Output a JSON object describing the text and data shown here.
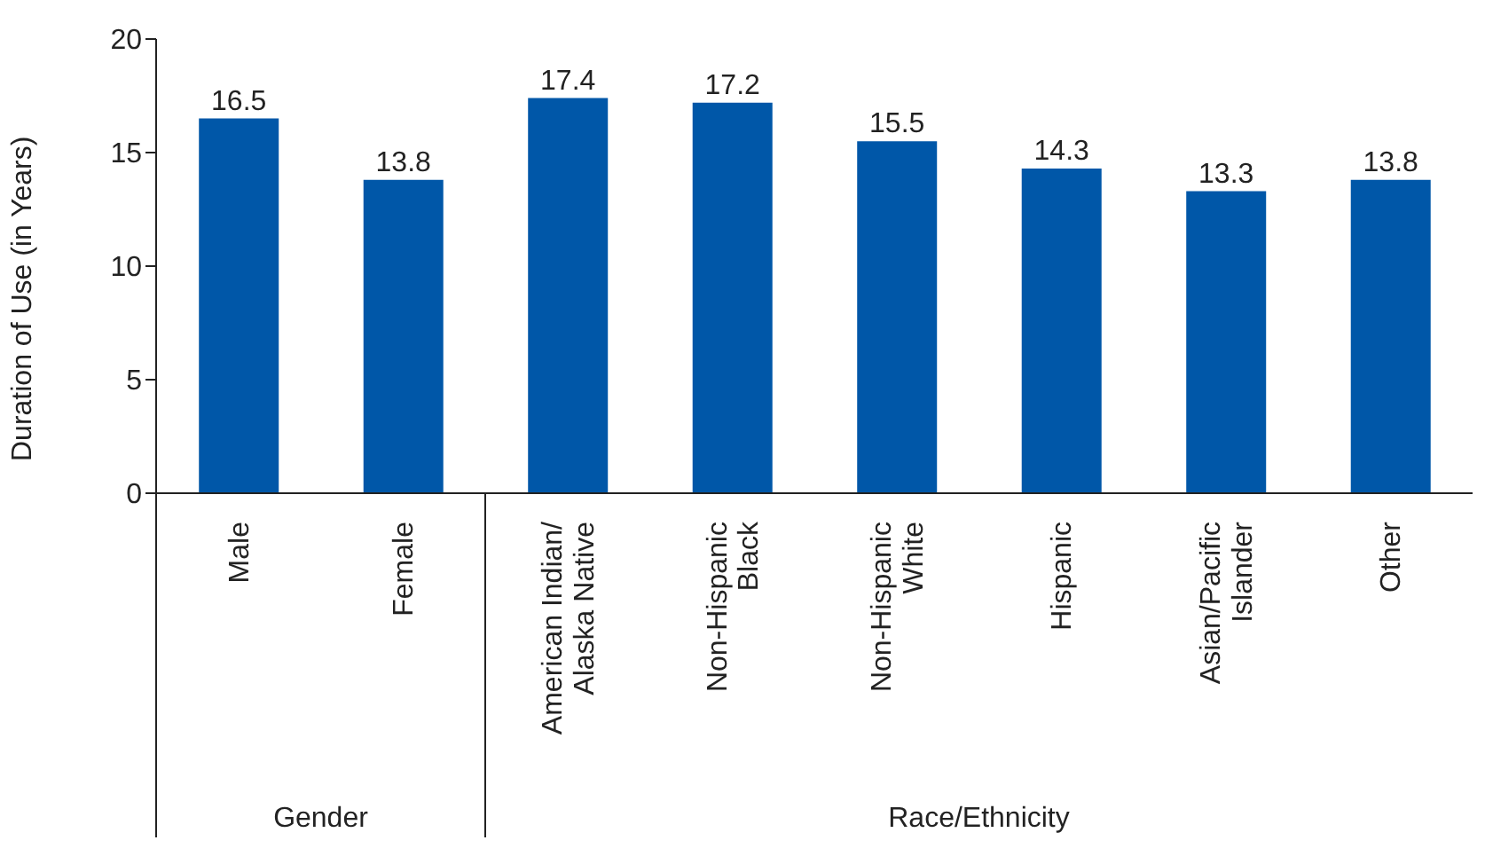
{
  "chart_data": {
    "type": "bar",
    "ylabel": "Duration of Use (in Years)",
    "categories": [
      "Male",
      "Female",
      "American Indian/Alaska Native",
      "Non-Hispanic Black",
      "Non-Hispanic White",
      "Hispanic",
      "Asian/Pacific Islander",
      "Other"
    ],
    "values": [
      16.5,
      13.8,
      17.4,
      17.2,
      15.5,
      14.3,
      13.3,
      13.8
    ],
    "color": "#0057a8",
    "ylim": [
      0,
      20
    ],
    "yticks": [
      0,
      5,
      10,
      15,
      20
    ],
    "data_labels": true,
    "annotations": [
      "Gender",
      "Race/Ethnicity"
    ]
  }
}
